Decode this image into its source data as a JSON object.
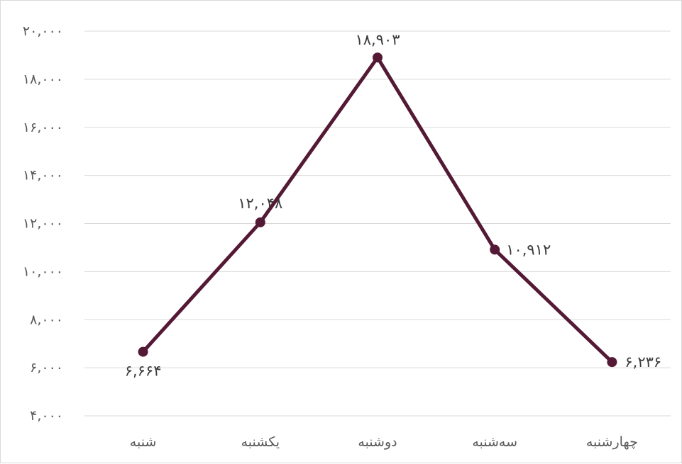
{
  "chart_data": {
    "type": "line",
    "categories": [
      "شنبه",
      "یکشنبه",
      "دوشنبه",
      "سه‌شنبه",
      "چهارشنبه"
    ],
    "values": [
      6664,
      12048,
      18903,
      10912,
      6236
    ],
    "data_labels": [
      "۶,۶۶۴",
      "۱۲,۰۴۸",
      "۱۸,۹۰۳",
      "۱۰,۹۱۲",
      "۶,۲۳۶"
    ],
    "yticks": [
      4000,
      6000,
      8000,
      10000,
      12000,
      14000,
      16000,
      18000,
      20000
    ],
    "ytick_labels": [
      "۴,۰۰۰",
      "۶,۰۰۰",
      "۸,۰۰۰",
      "۱۰,۰۰۰",
      "۱۲,۰۰۰",
      "۱۴,۰۰۰",
      "۱۶,۰۰۰",
      "۱۸,۰۰۰",
      "۲۰,۰۰۰"
    ],
    "ylim": [
      4000,
      20000
    ],
    "grid": true,
    "legend": "none",
    "line_color": "#531935"
  }
}
